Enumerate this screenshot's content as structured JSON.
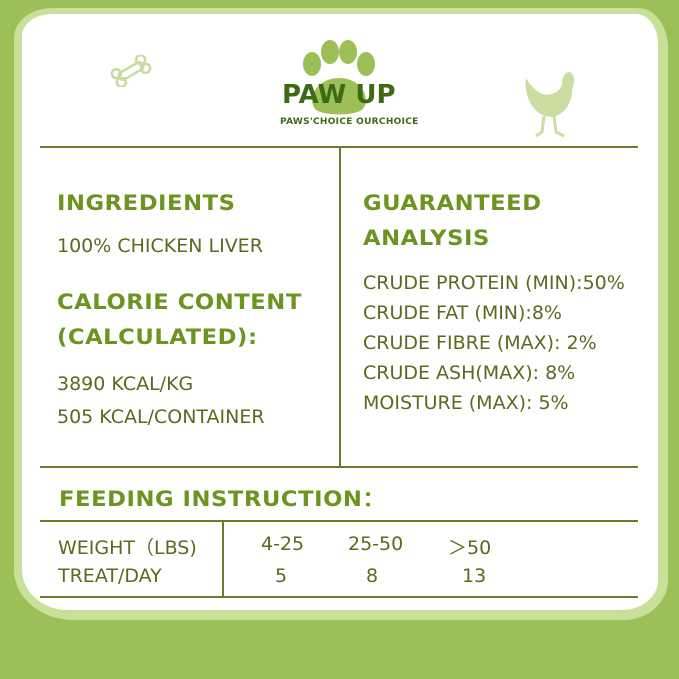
{
  "brand": {
    "name": "PAW UP",
    "tagline": "PAWS'CHOICE  OURCHOICE"
  },
  "colors": {
    "background": "#9cbf57",
    "heading": "#6c9420",
    "text": "#5a6a1e",
    "logo_dark": "#3d6a14",
    "logo_light": "#9cbf57"
  },
  "icons": [
    "bone-icon",
    "paw-logo-icon",
    "chicken-icon"
  ],
  "ingredients": {
    "heading": "INGREDIENTS",
    "value": "100% CHICKEN LIVER"
  },
  "calorie": {
    "heading_line1": "CALORIE CONTENT",
    "heading_line2": "(CALCULATED):",
    "values": [
      "3890 KCAL/KG",
      "505 KCAL/CONTAINER"
    ]
  },
  "analysis": {
    "heading_line1": "GUARANTEED",
    "heading_line2": "ANALYSIS",
    "items": [
      "CRUDE PROTEIN (MIN):50%",
      "CRUDE FAT (MIN):8%",
      "CRUDE FIBRE (MAX): 2%",
      "CRUDE ASH(MAX): 8%",
      "MOISTURE (MAX): 5%"
    ]
  },
  "feeding": {
    "heading": "FEEDING INSTRUCTION：",
    "rows": [
      {
        "label": "WEIGHT（LBS)",
        "values": [
          "4-25",
          "25-50",
          "＞50"
        ]
      },
      {
        "label": "TREAT/DAY",
        "values": [
          "5",
          "8",
          "13"
        ]
      }
    ]
  }
}
